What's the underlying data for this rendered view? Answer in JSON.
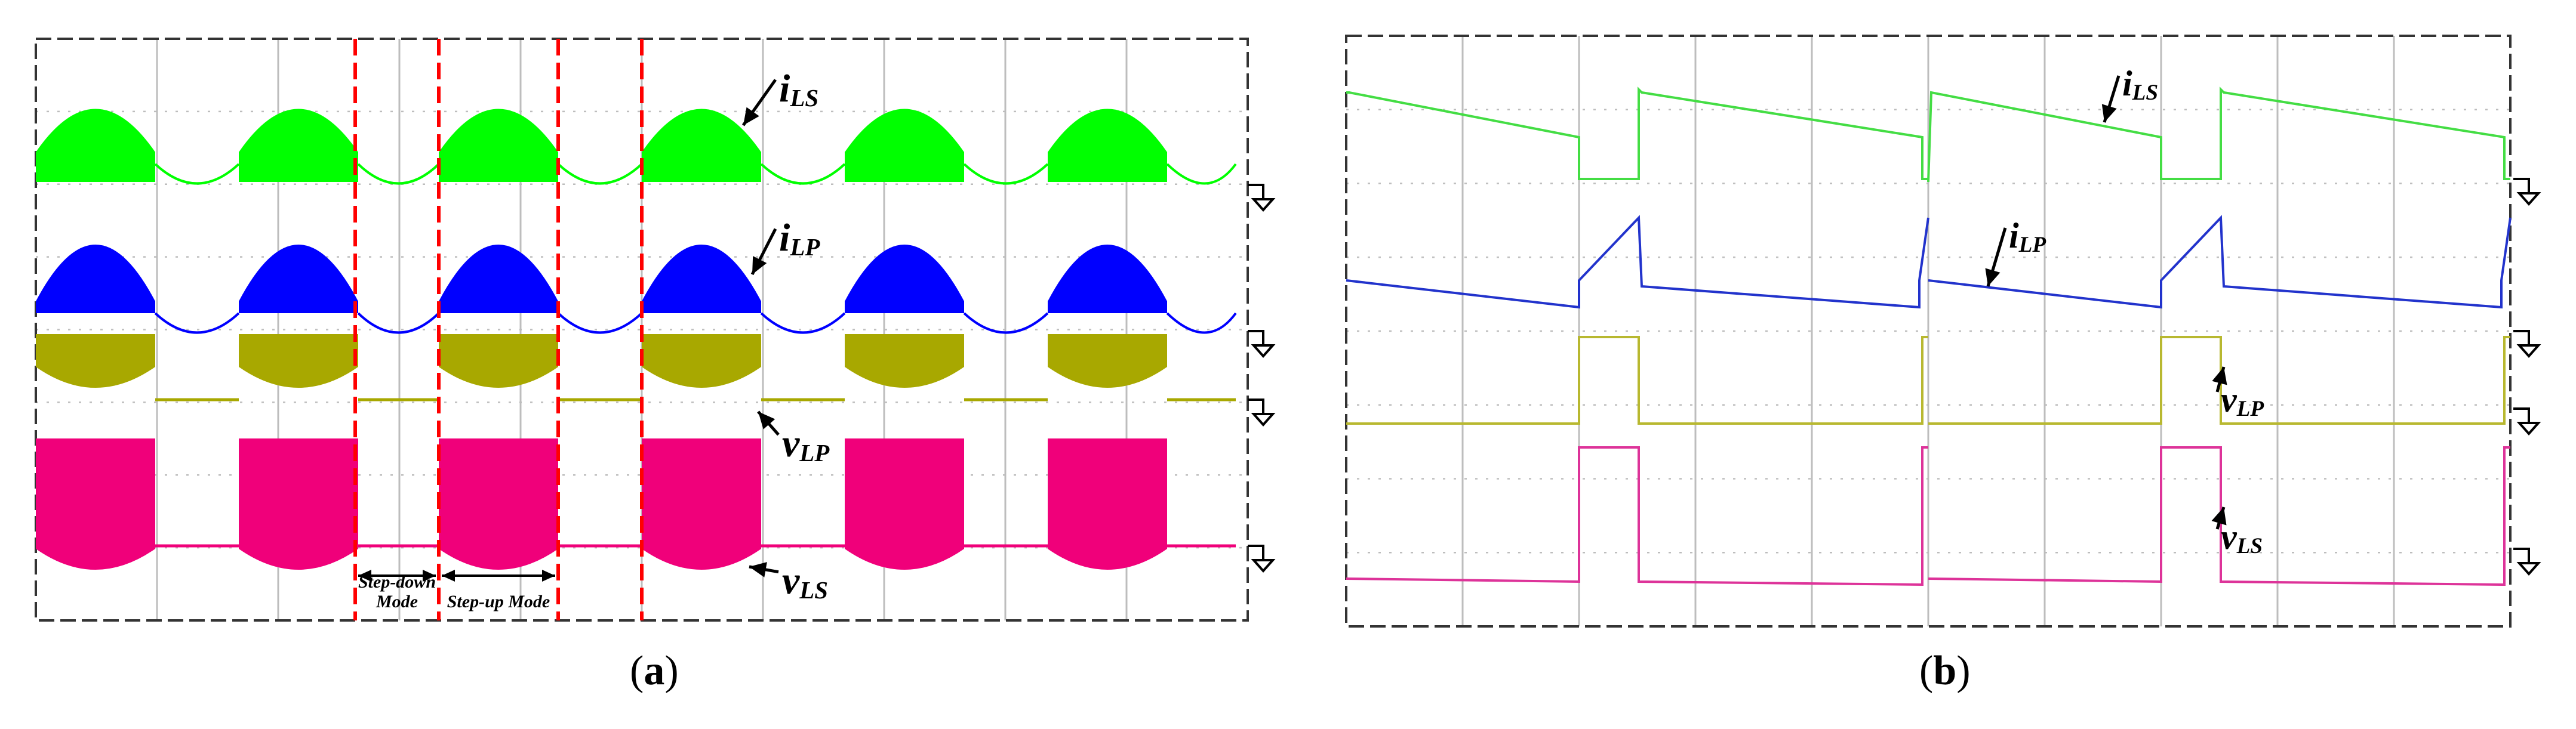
{
  "chart_data": [
    {
      "panel_label": "a",
      "type": "line",
      "grid": true,
      "traces": [
        {
          "name": "iLS",
          "label_main": "i",
          "label_sub": "LS",
          "color": "#00ff00",
          "envelope": "chopped-sine-half-wave"
        },
        {
          "name": "iLP",
          "label_main": "i",
          "label_sub": "LP",
          "color": "#0000ff",
          "envelope": "chopped-sine-half-wave"
        },
        {
          "name": "vLP",
          "label_main": "v",
          "label_sub": "LP",
          "color": "#a8a800",
          "envelope": "chopped-square-with-dip"
        },
        {
          "name": "vLS",
          "label_main": "v",
          "label_sub": "LS",
          "color": "#f0007a",
          "envelope": "chopped-square-with-dip"
        }
      ],
      "burst_count": 6,
      "mode_markers": [
        {
          "text_line1": "Step-down",
          "text_line2": "Mode"
        },
        {
          "text_line1": "Step-up Mode",
          "text_line2": ""
        }
      ]
    },
    {
      "panel_label": "b",
      "type": "line",
      "grid": true,
      "traces": [
        {
          "name": "iLS",
          "label_main": "i",
          "label_sub": "LS",
          "color": "#44dd44",
          "shape": "sawtooth-decay"
        },
        {
          "name": "iLP",
          "label_main": "i",
          "label_sub": "LP",
          "color": "#2233cc",
          "shape": "sawtooth-rise"
        },
        {
          "name": "vLP",
          "label_main": "v",
          "label_sub": "LP",
          "color": "#b8b830",
          "shape": "pulse"
        },
        {
          "name": "vLS",
          "label_main": "v",
          "label_sub": "LS",
          "color": "#dd3399",
          "shape": "pulse"
        }
      ],
      "periods": 2
    }
  ],
  "captions": {
    "a": "a",
    "b": "b"
  },
  "colors": {
    "marker_dash": "#ff0000",
    "grid": "#bdbdbd",
    "frame": "#333333",
    "ground": "#000000"
  }
}
